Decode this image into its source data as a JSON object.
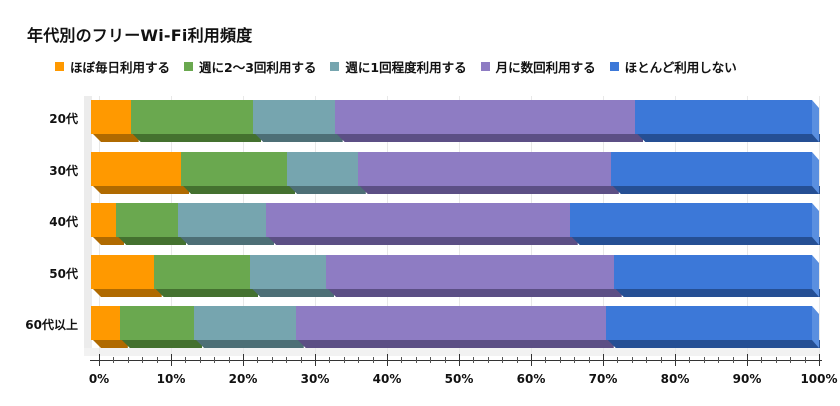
{
  "title": "年代別のフリーWi-Fi利用頻度",
  "legend": [
    {
      "label": "ほぼ毎日利用する",
      "color": "#ff9900"
    },
    {
      "label": "週に2〜3回利用する",
      "color": "#6aa84f"
    },
    {
      "label": "週に1回程度利用する",
      "color": "#76a5af"
    },
    {
      "label": "月に数回利用する",
      "color": "#8e7cc3"
    },
    {
      "label": "ほとんど利用しない",
      "color": "#3c78d8"
    }
  ],
  "shadow_colors": [
    "#b06a00",
    "#44712f",
    "#4d6f76",
    "#5c4f85",
    "#254f94"
  ],
  "x_ticks": [
    "0%",
    "10%",
    "20%",
    "30%",
    "40%",
    "50%",
    "60%",
    "70%",
    "80%",
    "90%",
    "100%"
  ],
  "chart_data": {
    "type": "bar",
    "orientation": "horizontal",
    "stacked": "percent",
    "style": "3d",
    "title": "年代別のフリーWi-Fi利用頻度",
    "xlabel": "",
    "ylabel": "",
    "xlim": [
      0,
      100
    ],
    "x_tick_labels": [
      "0%",
      "10%",
      "20%",
      "30%",
      "40%",
      "50%",
      "60%",
      "70%",
      "80%",
      "90%",
      "100%"
    ],
    "legend_position": "top",
    "grid": true,
    "categories": [
      "20代",
      "30代",
      "40代",
      "50代",
      "60代以上"
    ],
    "series": [
      {
        "name": "ほぼ毎日利用する",
        "color": "#ff9900",
        "values": [
          5.5,
          12.5,
          3.5,
          8.7,
          4.0
        ]
      },
      {
        "name": "週に2〜3回利用する",
        "color": "#6aa84f",
        "values": [
          17.0,
          14.7,
          8.6,
          13.4,
          10.3
        ]
      },
      {
        "name": "週に1回程度利用する",
        "color": "#76a5af",
        "values": [
          11.3,
          9.8,
          12.2,
          10.5,
          14.1
        ]
      },
      {
        "name": "月に数回利用する",
        "color": "#8e7cc3",
        "values": [
          41.7,
          35.1,
          42.1,
          39.9,
          43.0
        ]
      },
      {
        "name": "ほとんど利用しない",
        "color": "#3c78d8",
        "values": [
          24.5,
          27.9,
          33.6,
          27.5,
          28.6
        ]
      }
    ]
  }
}
